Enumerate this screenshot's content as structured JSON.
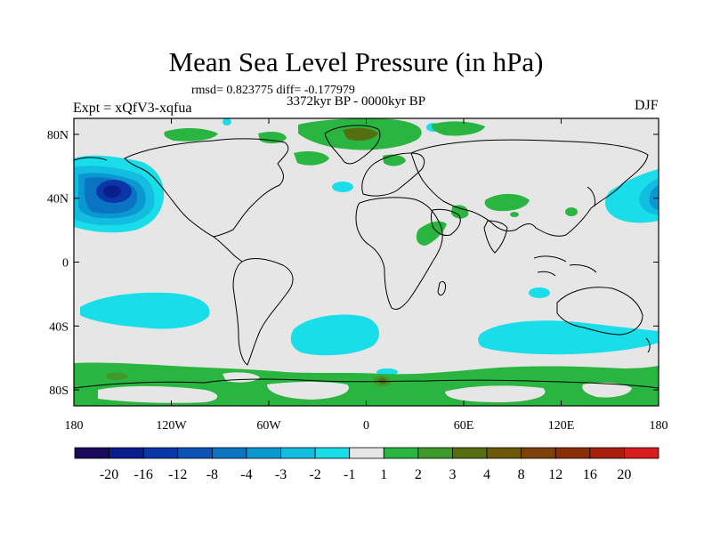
{
  "title": "Mean Sea Level Pressure (in hPa)",
  "stats_line": "rmsd= 0.823775 diff= -0.177979",
  "period": "3372kyr BP - 0000kyr BP",
  "experiment": "Expt = xQfV3-xqfua",
  "season": "DJF",
  "axes": {
    "lat_ticks": [
      {
        "lat": 80,
        "label": "80N"
      },
      {
        "lat": 40,
        "label": "40N"
      },
      {
        "lat": 0,
        "label": "0"
      },
      {
        "lat": -40,
        "label": "40S"
      },
      {
        "lat": -80,
        "label": "80S"
      }
    ],
    "lon_ticks": [
      {
        "lon": -180,
        "label": "180"
      },
      {
        "lon": -120,
        "label": "120W"
      },
      {
        "lon": -60,
        "label": "60W"
      },
      {
        "lon": 0,
        "label": "0"
      },
      {
        "lon": 60,
        "label": "60E"
      },
      {
        "lon": 120,
        "label": "120E"
      },
      {
        "lon": 180,
        "label": "180"
      }
    ],
    "lat_range": [
      -90,
      90
    ],
    "lon_range": [
      -180,
      180
    ]
  },
  "colorbar": {
    "colors": [
      "#1a0a5e",
      "#0a1f8c",
      "#0a36a8",
      "#0b54b6",
      "#0a74c3",
      "#0a98d1",
      "#12bde0",
      "#19dde8",
      "#e6e6e6",
      "#2ab541",
      "#3f9a2c",
      "#566e12",
      "#6c5a0a",
      "#7d4209",
      "#8c2d0a",
      "#a81f10",
      "#d81e1e"
    ],
    "labels": [
      "-20",
      "-16",
      "-12",
      "-8",
      "-4",
      "-3",
      "-2",
      "-1",
      "1",
      "2",
      "3",
      "4",
      "8",
      "12",
      "16",
      "20"
    ]
  }
}
